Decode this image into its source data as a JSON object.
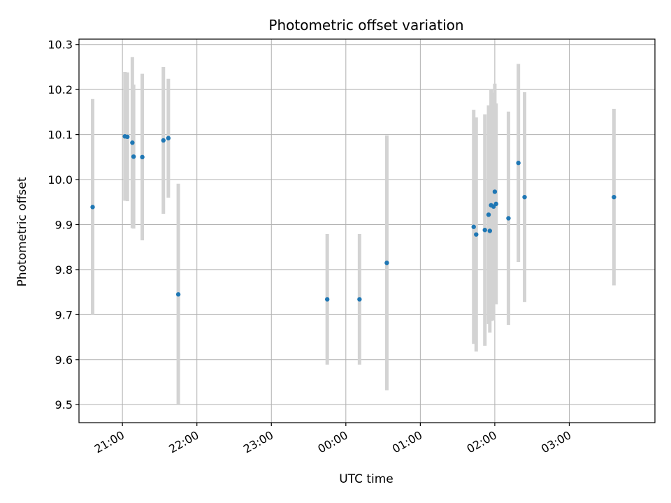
{
  "chart_data": {
    "type": "scatter",
    "title": "Photometric offset variation",
    "xlabel": "UTC time",
    "ylabel": "Photometric offset",
    "x_unit": "UTC time (HH:MM); times after midnight fall on the following day",
    "xlim": [
      "20:25",
      "04:09"
    ],
    "ylim": [
      9.46,
      10.312
    ],
    "x_ticks": [
      "21:00",
      "22:00",
      "23:00",
      "00:00",
      "01:00",
      "02:00",
      "03:00"
    ],
    "y_ticks": [
      "9.5",
      "9.6",
      "9.7",
      "9.8",
      "9.9",
      "10.0",
      "10.1",
      "10.2",
      "10.3"
    ],
    "y_tick_values": [
      9.5,
      9.6,
      9.7,
      9.8,
      9.9,
      10.0,
      10.1,
      10.2,
      10.3
    ],
    "grid": true,
    "colors": {
      "point": "#1f77b4",
      "errorbar": "#d3d3d3",
      "grid": "#b0b0b0",
      "axis": "#000000"
    },
    "points": [
      {
        "time": "20:36",
        "y": 9.939,
        "yerr": 0.24
      },
      {
        "time": "21:02",
        "y": 10.096,
        "yerr": 0.143
      },
      {
        "time": "21:04",
        "y": 10.095,
        "yerr": 0.143
      },
      {
        "time": "21:08",
        "y": 10.082,
        "yerr": 0.19
      },
      {
        "time": "21:09",
        "y": 10.051,
        "yerr": 0.16
      },
      {
        "time": "21:16",
        "y": 10.05,
        "yerr": 0.185
      },
      {
        "time": "21:33",
        "y": 10.087,
        "yerr": 0.163
      },
      {
        "time": "21:37",
        "y": 10.092,
        "yerr": 0.132
      },
      {
        "time": "21:45",
        "y": 9.745,
        "yerr": 0.246
      },
      {
        "time": "23:45",
        "y": 9.734,
        "yerr": 0.145
      },
      {
        "time": "00:11",
        "y": 9.734,
        "yerr": 0.145
      },
      {
        "time": "00:33",
        "y": 9.815,
        "yerr": 0.283
      },
      {
        "time": "01:43",
        "y": 9.895,
        "yerr": 0.26
      },
      {
        "time": "01:45",
        "y": 9.878,
        "yerr": 0.26
      },
      {
        "time": "01:52",
        "y": 9.888,
        "yerr": 0.257
      },
      {
        "time": "01:55",
        "y": 9.922,
        "yerr": 0.243
      },
      {
        "time": "01:56",
        "y": 9.886,
        "yerr": 0.226
      },
      {
        "time": "01:57",
        "y": 9.943,
        "yerr": 0.257
      },
      {
        "time": "01:59",
        "y": 9.94,
        "yerr": 0.253
      },
      {
        "time": "02:00",
        "y": 9.973,
        "yerr": 0.24
      },
      {
        "time": "02:01",
        "y": 9.946,
        "yerr": 0.223
      },
      {
        "time": "02:11",
        "y": 9.914,
        "yerr": 0.237
      },
      {
        "time": "02:19",
        "y": 10.037,
        "yerr": 0.22
      },
      {
        "time": "02:24",
        "y": 9.961,
        "yerr": 0.233
      },
      {
        "time": "03:36",
        "y": 9.961,
        "yerr": 0.196
      }
    ]
  }
}
